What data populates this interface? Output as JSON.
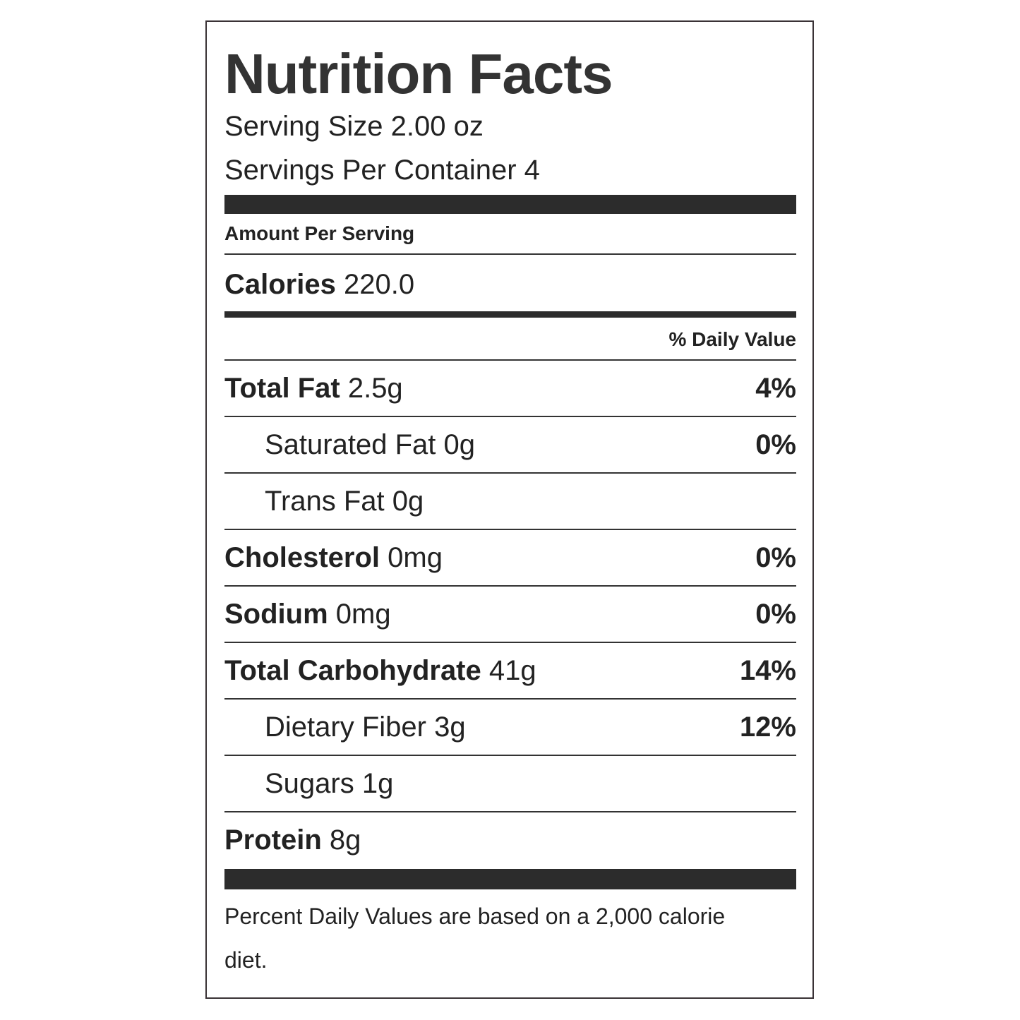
{
  "title": "Nutrition Facts",
  "serving_size": "Serving Size 2.00 oz",
  "servings_per_container": "Servings Per Container 4",
  "amount_per_serving": "Amount Per Serving",
  "calories": {
    "label": "Calories",
    "value": "220.0"
  },
  "daily_value_header": "% Daily Value",
  "rows": [
    {
      "name": "Total Fat",
      "amount": "2.5g",
      "daily_value": "4%",
      "subrows": [
        {
          "name": "Saturated Fat",
          "amount": "0g",
          "daily_value": "0%"
        },
        {
          "name": "Trans Fat",
          "amount": "0g"
        }
      ]
    },
    {
      "name": "Cholesterol",
      "amount": "0mg",
      "daily_value": "0%"
    },
    {
      "name": "Sodium",
      "amount": "0mg",
      "daily_value": "0%"
    },
    {
      "name": "Total Carbohydrate",
      "amount": "41g",
      "daily_value": "14%",
      "subrows": [
        {
          "name": "Dietary Fiber",
          "amount": "3g",
          "daily_value": "12%"
        },
        {
          "name": "Sugars",
          "amount": "1g"
        }
      ]
    },
    {
      "name": "Protein",
      "amount": "8g"
    }
  ],
  "footnote": "Percent Daily Values are based on a 2,000 calorie diet."
}
